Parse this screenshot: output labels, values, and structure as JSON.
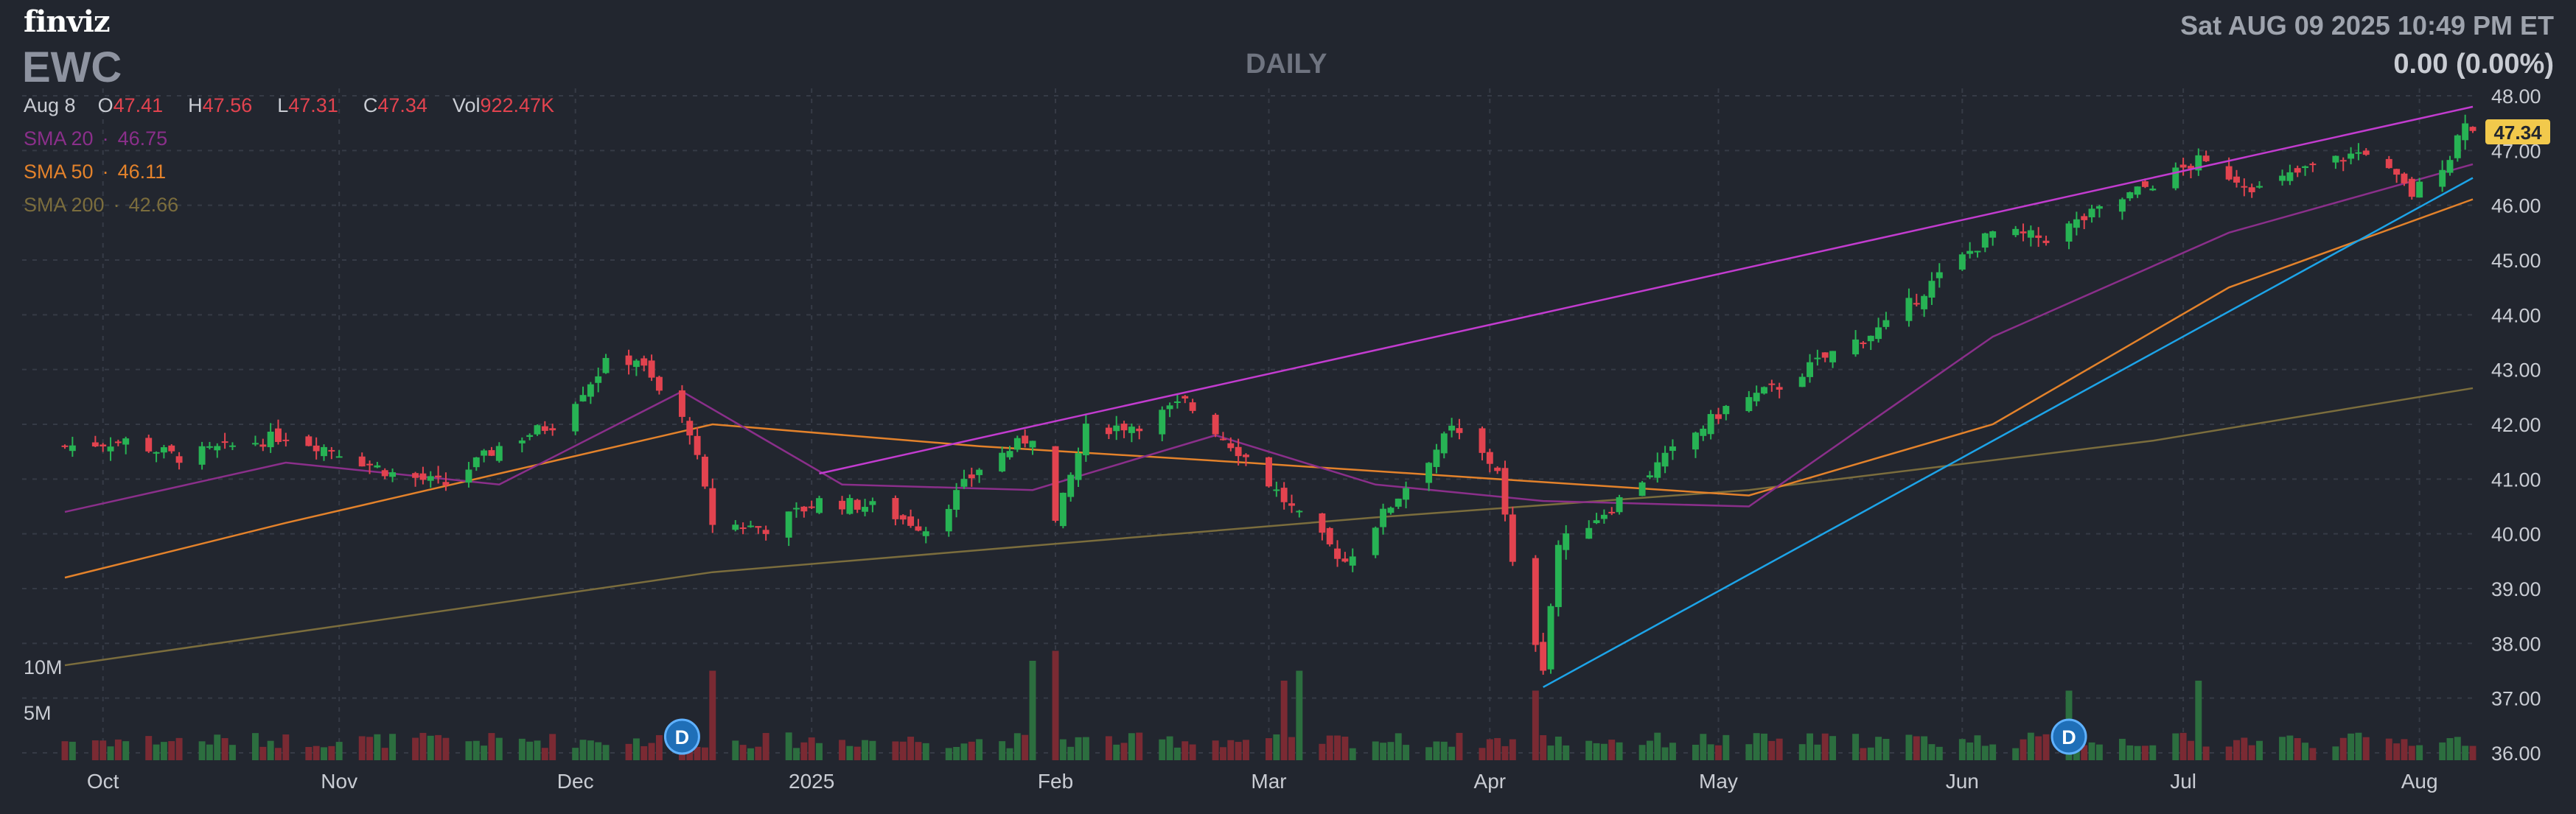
{
  "header": {
    "logo": "finviz",
    "ticker": "EWC",
    "timeframe": "DAILY",
    "datetime": "Sat AUG 09 2025 10:49 PM ET",
    "change": "0.00 (0.00%)"
  },
  "ohlc": {
    "date": "Aug 8",
    "o_label": "O",
    "o": "47.41",
    "h_label": "H",
    "h": "47.56",
    "l_label": "L",
    "l": "47.31",
    "c_label": "C",
    "c": "47.34",
    "vol_label": "Vol",
    "vol": "922.47K"
  },
  "indicators": {
    "sma20": {
      "label": "SMA 20",
      "value": "46.75"
    },
    "sma50": {
      "label": "SMA 50",
      "value": "46.11"
    },
    "sma200": {
      "label": "SMA 200",
      "value": "42.66"
    }
  },
  "colors": {
    "background": "#22262f",
    "up": "#27b354",
    "down": "#e2434f",
    "sma20": "#8a2f8a",
    "sma50": "#e3822b",
    "sma200": "#7b6d3d",
    "trend_upper": "#c23ccf",
    "trend_lower": "#1da4e8",
    "last_price_bg": "#f2c94c"
  },
  "chart_data": {
    "type": "candlestick",
    "x_labels": [
      "Oct",
      "Nov",
      "Dec",
      "2025",
      "Feb",
      "Mar",
      "Apr",
      "May",
      "Jun",
      "Jul",
      "Aug"
    ],
    "y_ticks": [
      "48.00",
      "47.00",
      "46.00",
      "45.00",
      "44.00",
      "43.00",
      "42.00",
      "41.00",
      "40.00",
      "39.00",
      "38.00",
      "37.00",
      "36.00"
    ],
    "ylim": [
      36,
      48
    ],
    "volume_ticks": [
      "10M",
      "5M"
    ],
    "last_price": "47.34",
    "dividend_marker": "D",
    "dividend_markers_at": [
      "2024-12-16",
      "2025-06-16"
    ],
    "close_path": [
      [
        "2024-09-26",
        41.6
      ],
      [
        "2024-10-04",
        41.7
      ],
      [
        "2024-10-11",
        41.4
      ],
      [
        "2024-10-18",
        41.6
      ],
      [
        "2024-10-25",
        41.8
      ],
      [
        "2024-11-01",
        41.5
      ],
      [
        "2024-11-08",
        41.1
      ],
      [
        "2024-11-15",
        40.9
      ],
      [
        "2024-11-22",
        41.6
      ],
      [
        "2024-11-29",
        42.0
      ],
      [
        "2024-12-06",
        43.1
      ],
      [
        "2024-12-10",
        43.2
      ],
      [
        "2024-12-13",
        42.6
      ],
      [
        "2024-12-17",
        41.9
      ],
      [
        "2024-12-20",
        40.2
      ],
      [
        "2024-12-27",
        40.1
      ],
      [
        "2025-01-03",
        40.6
      ],
      [
        "2025-01-10",
        40.5
      ],
      [
        "2025-01-17",
        40.1
      ],
      [
        "2025-01-24",
        41.2
      ],
      [
        "2025-01-31",
        41.8
      ],
      [
        "2025-02-03",
        40.2
      ],
      [
        "2025-02-07",
        41.9
      ],
      [
        "2025-02-14",
        42.0
      ],
      [
        "2025-02-20",
        42.4
      ],
      [
        "2025-02-28",
        41.4
      ],
      [
        "2025-03-07",
        40.3
      ],
      [
        "2025-03-13",
        39.5
      ],
      [
        "2025-03-20",
        40.7
      ],
      [
        "2025-03-27",
        41.9
      ],
      [
        "2025-04-02",
        41.2
      ],
      [
        "2025-04-04",
        39.4
      ],
      [
        "2025-04-08",
        37.6
      ],
      [
        "2025-04-10",
        39.8
      ],
      [
        "2025-04-17",
        40.5
      ],
      [
        "2025-04-25",
        41.5
      ],
      [
        "2025-05-02",
        42.3
      ],
      [
        "2025-05-09",
        42.7
      ],
      [
        "2025-05-16",
        43.3
      ],
      [
        "2025-05-23",
        43.8
      ],
      [
        "2025-05-30",
        44.7
      ],
      [
        "2025-06-06",
        45.5
      ],
      [
        "2025-06-13",
        45.4
      ],
      [
        "2025-06-20",
        45.9
      ],
      [
        "2025-06-27",
        46.4
      ],
      [
        "2025-07-03",
        46.8
      ],
      [
        "2025-07-11",
        46.3
      ],
      [
        "2025-07-18",
        46.7
      ],
      [
        "2025-07-25",
        47.0
      ],
      [
        "2025-07-31",
        46.2
      ],
      [
        "2025-08-05",
        46.9
      ],
      [
        "2025-08-07",
        47.6
      ],
      [
        "2025-08-08",
        47.34
      ]
    ],
    "sma20_path": [
      [
        "2024-09-26",
        40.4
      ],
      [
        "2024-10-25",
        41.3
      ],
      [
        "2024-11-22",
        40.9
      ],
      [
        "2024-12-16",
        42.6
      ],
      [
        "2025-01-06",
        40.9
      ],
      [
        "2025-01-31",
        40.8
      ],
      [
        "2025-02-24",
        41.8
      ],
      [
        "2025-03-17",
        40.9
      ],
      [
        "2025-04-08",
        40.6
      ],
      [
        "2025-05-05",
        40.5
      ],
      [
        "2025-06-06",
        43.6
      ],
      [
        "2025-07-07",
        45.5
      ],
      [
        "2025-08-08",
        46.75
      ]
    ],
    "sma50_path": [
      [
        "2024-09-26",
        39.2
      ],
      [
        "2024-10-25",
        40.2
      ],
      [
        "2024-11-22",
        41.1
      ],
      [
        "2024-12-20",
        42.0
      ],
      [
        "2025-01-24",
        41.6
      ],
      [
        "2025-02-28",
        41.3
      ],
      [
        "2025-04-02",
        41.0
      ],
      [
        "2025-05-05",
        40.7
      ],
      [
        "2025-06-06",
        42.0
      ],
      [
        "2025-07-07",
        44.5
      ],
      [
        "2025-08-08",
        46.11
      ]
    ],
    "sma200_path": [
      [
        "2024-09-26",
        37.6
      ],
      [
        "2024-12-20",
        39.3
      ],
      [
        "2025-03-17",
        40.3
      ],
      [
        "2025-05-05",
        40.8
      ],
      [
        "2025-06-27",
        41.7
      ],
      [
        "2025-08-08",
        42.66
      ]
    ],
    "trendlines": [
      {
        "from": [
          "2025-01-03",
          41.1
        ],
        "to": [
          "2025-08-08",
          47.8
        ]
      },
      {
        "from": [
          "2025-04-08",
          37.2
        ],
        "to": [
          "2025-08-08",
          46.5
        ]
      }
    ],
    "volume_events": [
      [
        "2024-12-20",
        9
      ],
      [
        "2025-01-31",
        10
      ],
      [
        "2025-02-03",
        11
      ],
      [
        "2025-03-05",
        8
      ],
      [
        "2025-03-07",
        9
      ],
      [
        "2025-04-07",
        7
      ],
      [
        "2025-06-16",
        7
      ],
      [
        "2025-07-03",
        8
      ]
    ]
  }
}
